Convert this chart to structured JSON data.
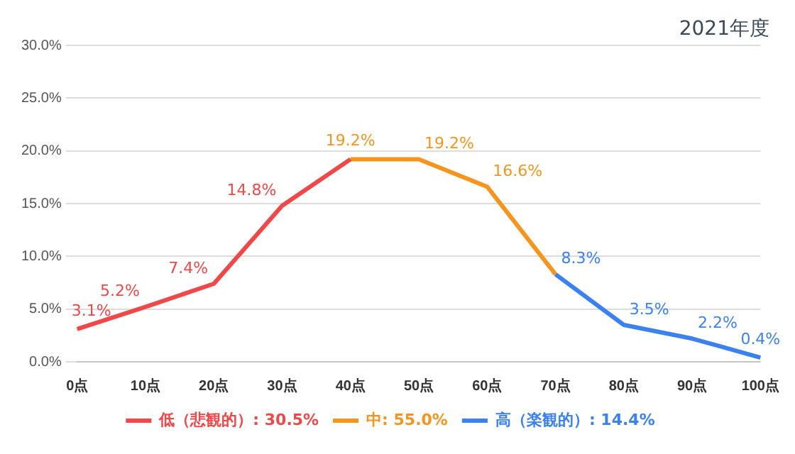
{
  "chart_data": {
    "type": "line",
    "title": "2021年度",
    "categories": [
      "0点",
      "10点",
      "20点",
      "30点",
      "40点",
      "50点",
      "60点",
      "70点",
      "80点",
      "90点",
      "100点"
    ],
    "series": [
      {
        "name": "低（悲観的）: 30.5%",
        "color": "#f04848",
        "values": [
          3.1,
          5.2,
          7.4,
          14.8,
          19.2,
          null,
          null,
          null,
          null,
          null,
          null
        ],
        "value_labels": [
          "3.1%",
          "5.2%",
          "7.4%",
          "14.8%",
          null,
          null,
          null,
          null,
          null,
          null,
          null
        ]
      },
      {
        "name": "中: 55.0%",
        "color": "#f7941d",
        "values": [
          null,
          null,
          null,
          null,
          19.2,
          19.2,
          16.6,
          8.3,
          null,
          null,
          null
        ],
        "value_labels": [
          null,
          null,
          null,
          null,
          "19.2%",
          "19.2%",
          "16.6%",
          null,
          null,
          null,
          null
        ]
      },
      {
        "name": "高（楽観的）: 14.4%",
        "color": "#3b82f0",
        "values": [
          null,
          null,
          null,
          null,
          null,
          null,
          null,
          8.3,
          3.5,
          2.2,
          0.4
        ],
        "value_labels": [
          null,
          null,
          null,
          null,
          null,
          null,
          null,
          "8.3%",
          "3.5%",
          "2.2%",
          "0.4%"
        ]
      }
    ],
    "ylim": [
      0,
      30
    ],
    "yticks": [
      {
        "value": 0,
        "label": "0.0%"
      },
      {
        "value": 5,
        "label": "5.0%"
      },
      {
        "value": 10,
        "label": "10.0%"
      },
      {
        "value": 15,
        "label": "15.0%"
      },
      {
        "value": 20,
        "label": "20.0%"
      },
      {
        "value": 25,
        "label": "25.0%"
      },
      {
        "value": 30,
        "label": "30.0%"
      }
    ],
    "grid": "y",
    "legend": "bottom",
    "marker": "none",
    "line_style": "solid"
  }
}
